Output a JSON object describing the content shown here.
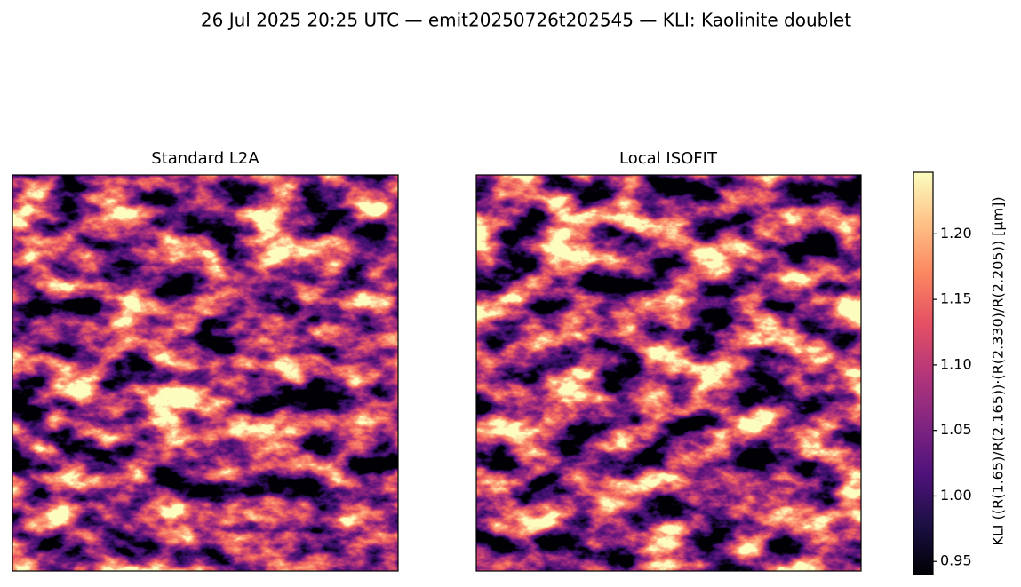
{
  "chart_data": {
    "type": "heatmap",
    "title": "26 Jul 2025 20:25 UTC — emit20250726t202545 — KLI: Kaolinite doublet",
    "panels": [
      {
        "title": "Standard L2A"
      },
      {
        "title": "Local ISOFIT"
      }
    ],
    "colormap": "magma",
    "colorbar": {
      "label": "KLI  ((R(1.65)/R(2.165))·(R(2.330)/R(2.205))  [µm])",
      "lim": [
        0.94,
        1.247
      ],
      "ticks": [
        0.95,
        {
          "value": 1,
          "label": "1.00"
        },
        1.05,
        {
          "value": 1.1,
          "label": "1.10"
        },
        1.15,
        {
          "value": 1.2,
          "label": "1.20"
        }
      ]
    }
  }
}
